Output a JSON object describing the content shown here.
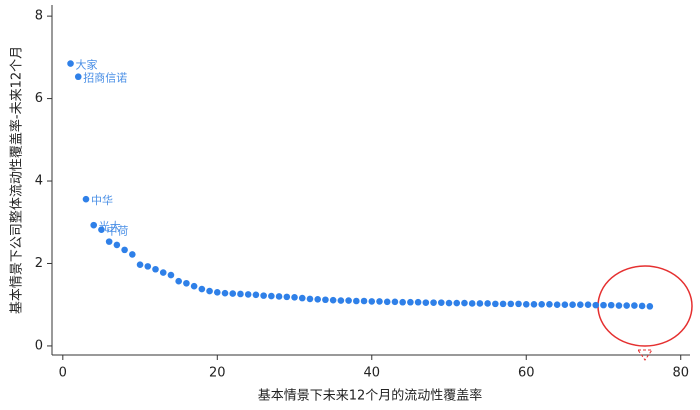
{
  "chart_data": {
    "type": "scatter",
    "x_label": "基本情景下未来12个月的流动性覆盖率",
    "y_label": "基本情景下公司整体流动性覆盖率-未来12个月",
    "color": "#2f80e8",
    "x": [
      1,
      2,
      3,
      4,
      5,
      6,
      7,
      8,
      9,
      10,
      11,
      12,
      13,
      14,
      15,
      16,
      17,
      18,
      19,
      20,
      21,
      22,
      23,
      24,
      25,
      26,
      27,
      28,
      29,
      30,
      31,
      32,
      33,
      34,
      35,
      36,
      37,
      38,
      39,
      40,
      41,
      42,
      43,
      44,
      45,
      46,
      47,
      48,
      49,
      50,
      51,
      52,
      53,
      54,
      55,
      56,
      57,
      58,
      59,
      60,
      61,
      62,
      63,
      64,
      65,
      66,
      67,
      68,
      69,
      70,
      71,
      72,
      73,
      74,
      75,
      76
    ],
    "values": [
      6.85,
      6.53,
      3.56,
      2.93,
      2.82,
      2.53,
      2.45,
      2.33,
      2.22,
      1.97,
      1.93,
      1.86,
      1.78,
      1.72,
      1.57,
      1.52,
      1.45,
      1.38,
      1.33,
      1.3,
      1.28,
      1.27,
      1.26,
      1.25,
      1.24,
      1.22,
      1.21,
      1.2,
      1.19,
      1.18,
      1.16,
      1.14,
      1.13,
      1.12,
      1.11,
      1.1,
      1.1,
      1.09,
      1.09,
      1.08,
      1.08,
      1.07,
      1.07,
      1.06,
      1.06,
      1.06,
      1.05,
      1.05,
      1.05,
      1.04,
      1.04,
      1.04,
      1.03,
      1.03,
      1.03,
      1.02,
      1.02,
      1.02,
      1.02,
      1.01,
      1.01,
      1.01,
      1.01,
      1.0,
      1.0,
      1.0,
      1.0,
      1.0,
      0.99,
      0.99,
      0.99,
      0.98,
      0.98,
      0.98,
      0.97,
      0.96
    ],
    "point_labels": [
      "大家",
      "招商信诺",
      "中华",
      "光大",
      "中荷",
      null,
      null,
      null,
      null,
      null,
      null,
      null,
      null,
      null,
      null,
      null,
      null,
      null,
      null,
      null,
      null,
      null,
      null,
      null,
      null,
      null,
      null,
      null,
      null,
      null,
      null,
      null,
      null,
      null,
      null,
      null,
      null,
      null,
      null,
      null,
      null,
      null,
      null,
      null,
      null,
      null,
      null,
      null,
      null,
      null,
      null,
      null,
      null,
      null,
      null,
      null,
      null,
      null,
      null,
      null,
      null,
      null,
      null,
      null,
      null,
      null,
      null,
      null,
      null,
      null,
      null,
      null,
      null,
      null,
      null,
      null
    ],
    "xlim": [
      -1.4,
      81.2
    ],
    "xticks": [
      0,
      20,
      40,
      60,
      80
    ],
    "ylim": [
      -0.22,
      8.27
    ],
    "yticks": [
      0,
      2,
      4,
      6,
      8
    ],
    "grid": false
  }
}
